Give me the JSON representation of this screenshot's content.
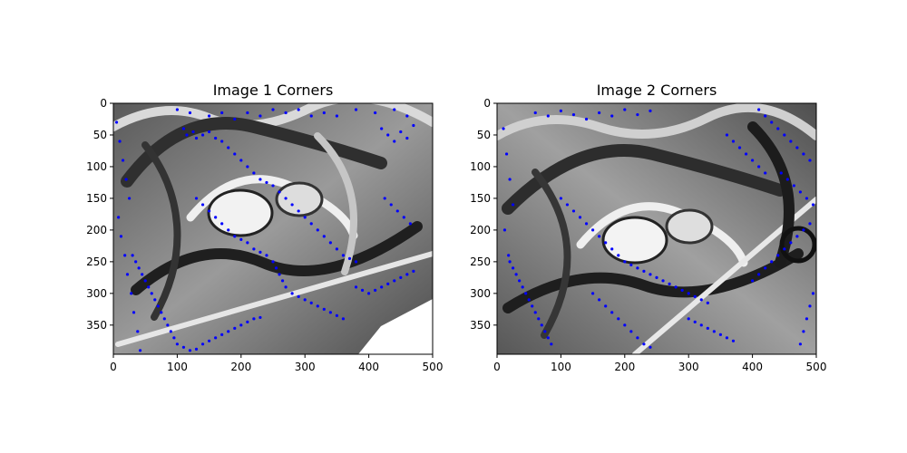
{
  "figure": {
    "panels": [
      {
        "title": "Image 1 Corners",
        "xlim": [
          0,
          500
        ],
        "ylim": [
          0,
          396
        ],
        "xticks": [
          0,
          100,
          200,
          300,
          400,
          500
        ],
        "yticks": [
          0,
          50,
          100,
          150,
          200,
          250,
          300,
          350
        ]
      },
      {
        "title": "Image 2 Corners",
        "xlim": [
          0,
          500
        ],
        "ylim": [
          0,
          396
        ],
        "xticks": [
          0,
          100,
          200,
          300,
          400,
          500
        ],
        "yticks": [
          0,
          50,
          100,
          150,
          200,
          250,
          300,
          350
        ]
      }
    ]
  },
  "chart_data": [
    {
      "type": "scatter",
      "title": "Image 1 Corners",
      "background": "grayscale graffiti image",
      "marker_color": "#0000ff",
      "xlim": [
        0,
        500
      ],
      "ylim": [
        396,
        0
      ],
      "grid": false,
      "points": [
        [
          100,
          10
        ],
        [
          120,
          15
        ],
        [
          150,
          20
        ],
        [
          170,
          15
        ],
        [
          190,
          25
        ],
        [
          210,
          15
        ],
        [
          230,
          20
        ],
        [
          250,
          10
        ],
        [
          270,
          15
        ],
        [
          290,
          10
        ],
        [
          310,
          20
        ],
        [
          330,
          15
        ],
        [
          350,
          20
        ],
        [
          380,
          10
        ],
        [
          410,
          15
        ],
        [
          440,
          10
        ],
        [
          460,
          20
        ],
        [
          110,
          40
        ],
        [
          115,
          50
        ],
        [
          125,
          45
        ],
        [
          130,
          55
        ],
        [
          140,
          50
        ],
        [
          150,
          45
        ],
        [
          160,
          55
        ],
        [
          170,
          60
        ],
        [
          180,
          70
        ],
        [
          190,
          80
        ],
        [
          200,
          90
        ],
        [
          210,
          100
        ],
        [
          220,
          110
        ],
        [
          230,
          120
        ],
        [
          240,
          125
        ],
        [
          250,
          130
        ],
        [
          260,
          140
        ],
        [
          270,
          150
        ],
        [
          280,
          160
        ],
        [
          290,
          170
        ],
        [
          300,
          180
        ],
        [
          310,
          190
        ],
        [
          320,
          200
        ],
        [
          330,
          210
        ],
        [
          340,
          220
        ],
        [
          350,
          230
        ],
        [
          360,
          240
        ],
        [
          370,
          245
        ],
        [
          380,
          250
        ],
        [
          130,
          150
        ],
        [
          140,
          160
        ],
        [
          150,
          170
        ],
        [
          160,
          180
        ],
        [
          170,
          190
        ],
        [
          180,
          200
        ],
        [
          190,
          210
        ],
        [
          200,
          215
        ],
        [
          210,
          220
        ],
        [
          220,
          230
        ],
        [
          230,
          235
        ],
        [
          240,
          240
        ],
        [
          250,
          250
        ],
        [
          255,
          260
        ],
        [
          260,
          270
        ],
        [
          265,
          280
        ],
        [
          270,
          290
        ],
        [
          280,
          300
        ],
        [
          290,
          305
        ],
        [
          300,
          310
        ],
        [
          310,
          315
        ],
        [
          320,
          320
        ],
        [
          330,
          325
        ],
        [
          340,
          330
        ],
        [
          350,
          335
        ],
        [
          360,
          340
        ],
        [
          30,
          240
        ],
        [
          35,
          250
        ],
        [
          40,
          260
        ],
        [
          45,
          270
        ],
        [
          50,
          280
        ],
        [
          55,
          290
        ],
        [
          60,
          300
        ],
        [
          65,
          310
        ],
        [
          70,
          320
        ],
        [
          75,
          330
        ],
        [
          80,
          340
        ],
        [
          85,
          350
        ],
        [
          90,
          360
        ],
        [
          95,
          370
        ],
        [
          100,
          380
        ],
        [
          110,
          385
        ],
        [
          120,
          390
        ],
        [
          130,
          388
        ],
        [
          140,
          380
        ],
        [
          150,
          375
        ],
        [
          160,
          370
        ],
        [
          170,
          365
        ],
        [
          180,
          360
        ],
        [
          190,
          355
        ],
        [
          200,
          350
        ],
        [
          210,
          345
        ],
        [
          220,
          340
        ],
        [
          230,
          338
        ],
        [
          380,
          290
        ],
        [
          390,
          295
        ],
        [
          400,
          300
        ],
        [
          410,
          295
        ],
        [
          420,
          290
        ],
        [
          430,
          285
        ],
        [
          440,
          280
        ],
        [
          450,
          275
        ],
        [
          460,
          270
        ],
        [
          470,
          265
        ],
        [
          5,
          30
        ],
        [
          10,
          60
        ],
        [
          15,
          90
        ],
        [
          20,
          120
        ],
        [
          25,
          150
        ],
        [
          8,
          180
        ],
        [
          12,
          210
        ],
        [
          18,
          240
        ],
        [
          22,
          270
        ],
        [
          28,
          300
        ],
        [
          32,
          330
        ],
        [
          38,
          360
        ],
        [
          42,
          390
        ],
        [
          420,
          40
        ],
        [
          430,
          50
        ],
        [
          440,
          60
        ],
        [
          450,
          45
        ],
        [
          460,
          55
        ],
        [
          470,
          35
        ],
        [
          425,
          150
        ],
        [
          435,
          160
        ],
        [
          445,
          170
        ],
        [
          455,
          180
        ],
        [
          465,
          190
        ]
      ]
    },
    {
      "type": "scatter",
      "title": "Image 2 Corners",
      "background": "grayscale graffiti image",
      "marker_color": "#0000ff",
      "xlim": [
        0,
        500
      ],
      "ylim": [
        396,
        0
      ],
      "grid": false,
      "points": [
        [
          60,
          15
        ],
        [
          80,
          20
        ],
        [
          100,
          12
        ],
        [
          120,
          18
        ],
        [
          140,
          25
        ],
        [
          160,
          15
        ],
        [
          180,
          20
        ],
        [
          200,
          10
        ],
        [
          220,
          18
        ],
        [
          240,
          12
        ],
        [
          410,
          10
        ],
        [
          420,
          20
        ],
        [
          430,
          30
        ],
        [
          440,
          40
        ],
        [
          450,
          50
        ],
        [
          460,
          60
        ],
        [
          470,
          70
        ],
        [
          480,
          80
        ],
        [
          490,
          90
        ],
        [
          445,
          110
        ],
        [
          455,
          120
        ],
        [
          465,
          130
        ],
        [
          475,
          140
        ],
        [
          485,
          150
        ],
        [
          495,
          160
        ],
        [
          360,
          50
        ],
        [
          370,
          60
        ],
        [
          380,
          70
        ],
        [
          390,
          80
        ],
        [
          400,
          90
        ],
        [
          410,
          100
        ],
        [
          420,
          110
        ],
        [
          100,
          150
        ],
        [
          110,
          160
        ],
        [
          120,
          170
        ],
        [
          130,
          180
        ],
        [
          140,
          190
        ],
        [
          150,
          200
        ],
        [
          160,
          210
        ],
        [
          170,
          220
        ],
        [
          180,
          230
        ],
        [
          190,
          240
        ],
        [
          200,
          250
        ],
        [
          210,
          255
        ],
        [
          220,
          260
        ],
        [
          230,
          265
        ],
        [
          240,
          270
        ],
        [
          250,
          275
        ],
        [
          260,
          280
        ],
        [
          270,
          285
        ],
        [
          280,
          290
        ],
        [
          290,
          295
        ],
        [
          300,
          300
        ],
        [
          310,
          305
        ],
        [
          320,
          310
        ],
        [
          330,
          315
        ],
        [
          20,
          250
        ],
        [
          25,
          260
        ],
        [
          30,
          270
        ],
        [
          35,
          280
        ],
        [
          40,
          290
        ],
        [
          45,
          300
        ],
        [
          50,
          310
        ],
        [
          55,
          320
        ],
        [
          60,
          330
        ],
        [
          65,
          340
        ],
        [
          70,
          350
        ],
        [
          75,
          360
        ],
        [
          80,
          370
        ],
        [
          85,
          380
        ],
        [
          150,
          300
        ],
        [
          160,
          310
        ],
        [
          170,
          320
        ],
        [
          180,
          330
        ],
        [
          190,
          340
        ],
        [
          200,
          350
        ],
        [
          210,
          360
        ],
        [
          220,
          370
        ],
        [
          230,
          380
        ],
        [
          240,
          385
        ],
        [
          300,
          340
        ],
        [
          310,
          345
        ],
        [
          320,
          350
        ],
        [
          330,
          355
        ],
        [
          340,
          360
        ],
        [
          350,
          365
        ],
        [
          360,
          370
        ],
        [
          370,
          375
        ],
        [
          400,
          280
        ],
        [
          410,
          270
        ],
        [
          420,
          260
        ],
        [
          430,
          250
        ],
        [
          440,
          240
        ],
        [
          450,
          230
        ],
        [
          460,
          220
        ],
        [
          470,
          210
        ],
        [
          480,
          200
        ],
        [
          490,
          190
        ],
        [
          10,
          40
        ],
        [
          15,
          80
        ],
        [
          20,
          120
        ],
        [
          25,
          160
        ],
        [
          12,
          200
        ],
        [
          18,
          240
        ],
        [
          495,
          300
        ],
        [
          490,
          320
        ],
        [
          485,
          340
        ],
        [
          480,
          360
        ],
        [
          475,
          380
        ]
      ]
    }
  ]
}
